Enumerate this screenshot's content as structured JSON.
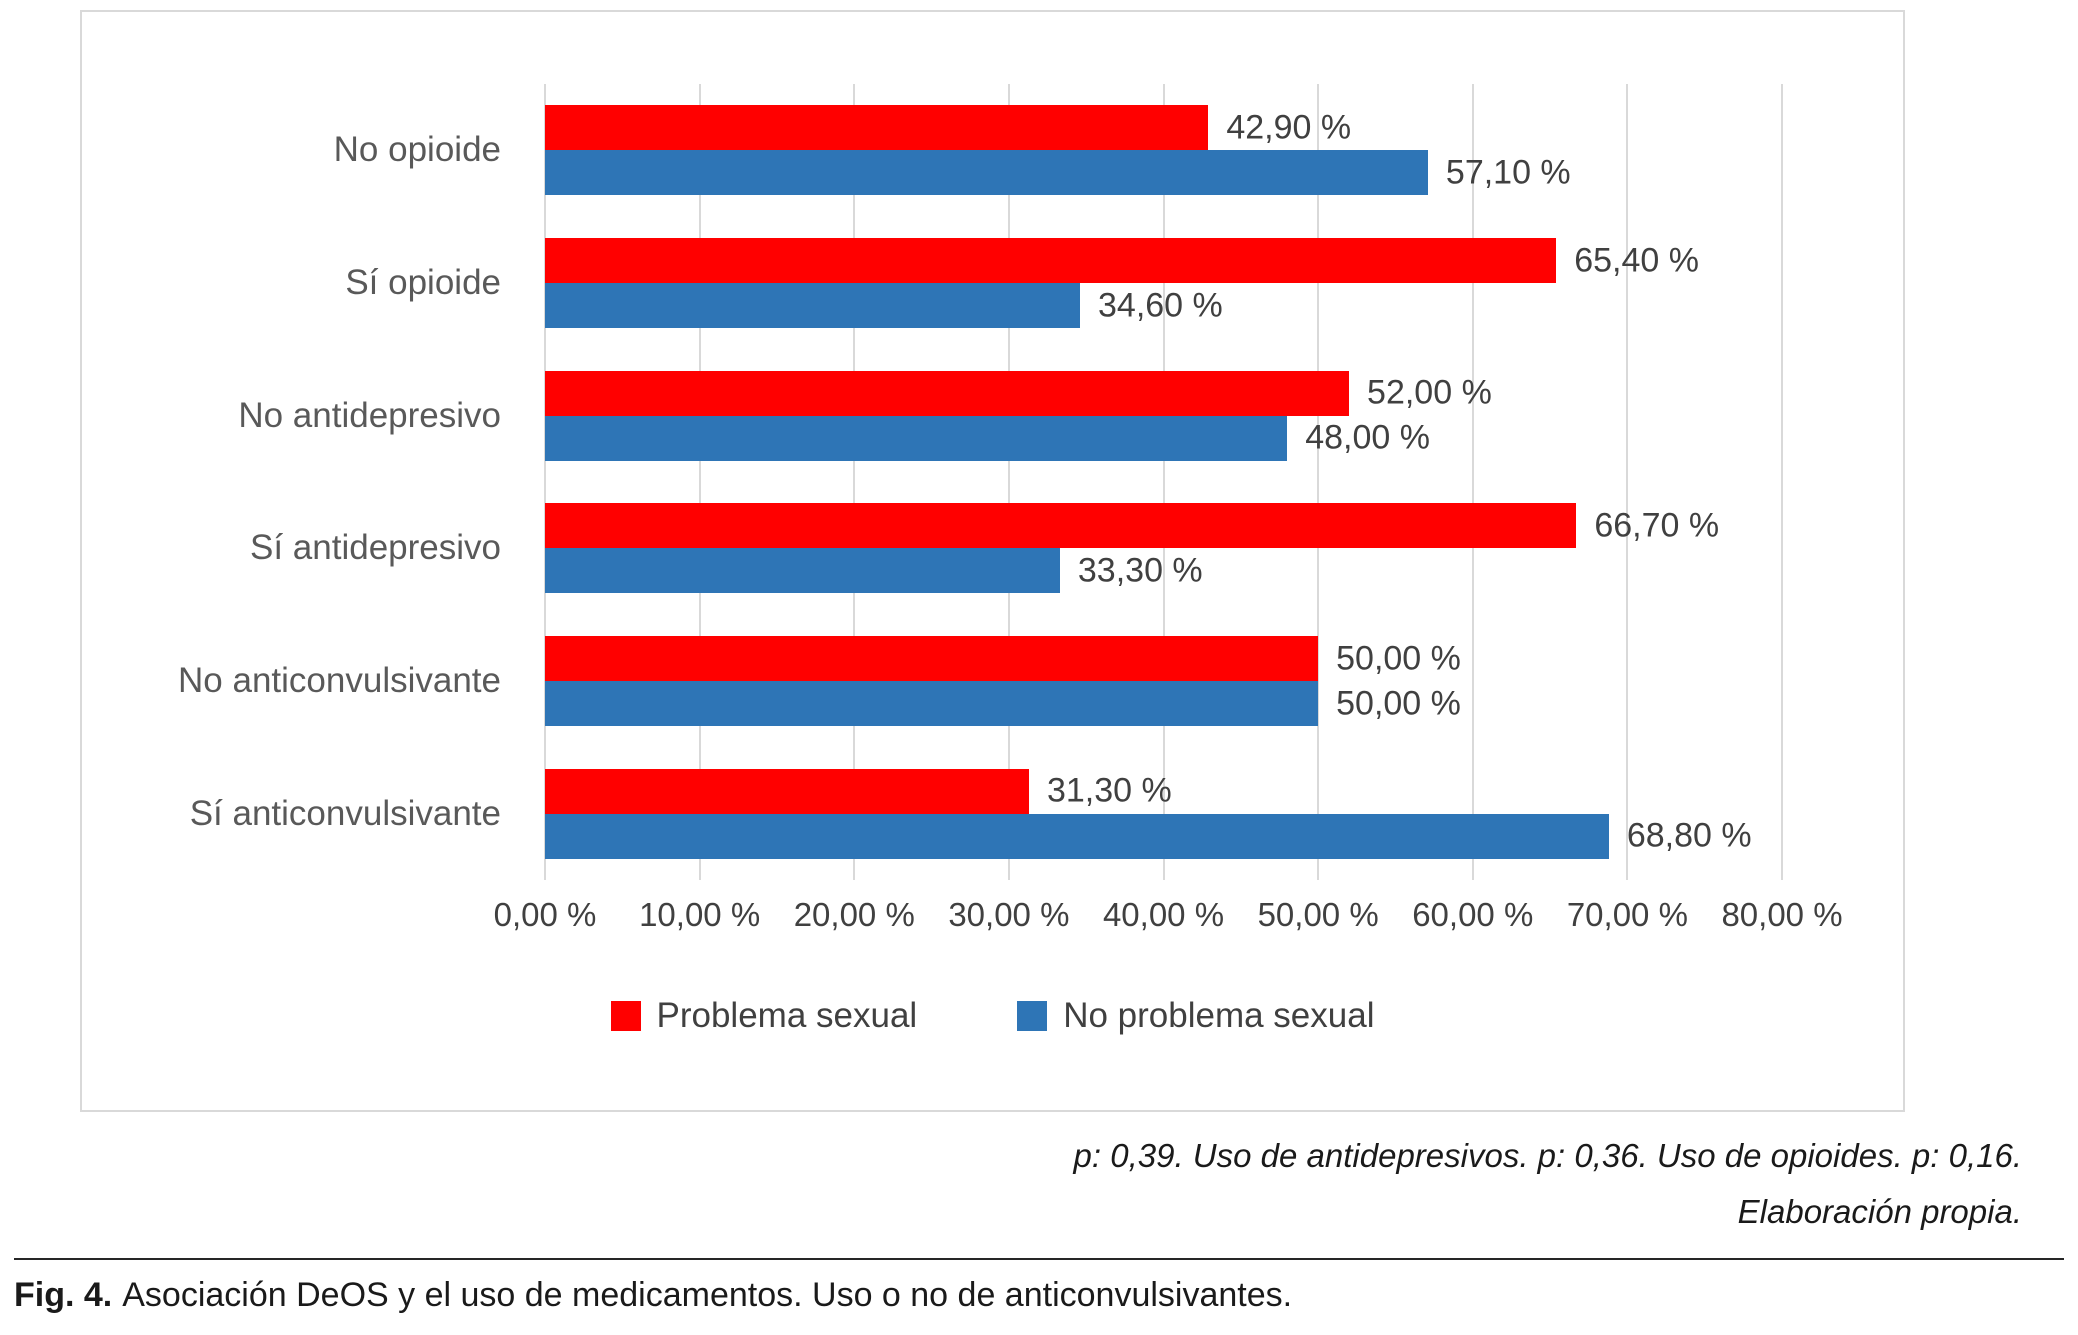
{
  "figure": {
    "notes_line1": "p: 0,39. Uso de antidepresivos. p: 0,36. Uso de opioides. p: 0,16.",
    "notes_line2": "Elaboración propia.",
    "fig_label": "Fig. 4.",
    "fig_caption": "Asociación DeOS y el uso de medicamentos. Uso o no de anticonvulsivantes."
  },
  "chart_data": {
    "type": "bar",
    "orientation": "horizontal",
    "title": "",
    "categories": [
      "No opioide",
      "Sí opioide",
      "No antidepresivo",
      "Sí antidepresivo",
      "No anticonvulsivante",
      "Sí anticonvulsivante"
    ],
    "series": [
      {
        "name": "Problema sexual",
        "color": "#ff0000",
        "values": [
          42.9,
          65.4,
          52.0,
          66.7,
          50.0,
          31.3
        ],
        "labels": [
          "42,90 %",
          "65,40 %",
          "52,00 %",
          "66,70 %",
          "50,00 %",
          "31,30 %"
        ]
      },
      {
        "name": "No problema sexual",
        "color": "#2e75b6",
        "values": [
          57.1,
          34.6,
          48.0,
          33.3,
          50.0,
          68.8
        ],
        "labels": [
          "57,10 %",
          "34,60 %",
          "48,00 %",
          "33,30 %",
          "50,00 %",
          "68,80 %"
        ]
      }
    ],
    "x_axis": {
      "min": 0,
      "max": 80,
      "tick_step": 10,
      "tick_labels": [
        "0,00 %",
        "10,00 %",
        "20,00 %",
        "30,00 %",
        "40,00 %",
        "50,00 %",
        "60,00 %",
        "70,00 %",
        "80,00 %"
      ]
    },
    "grid": true,
    "legend_position": "bottom",
    "gridline_color": "#d9d9d9",
    "label_color": "#595959"
  }
}
